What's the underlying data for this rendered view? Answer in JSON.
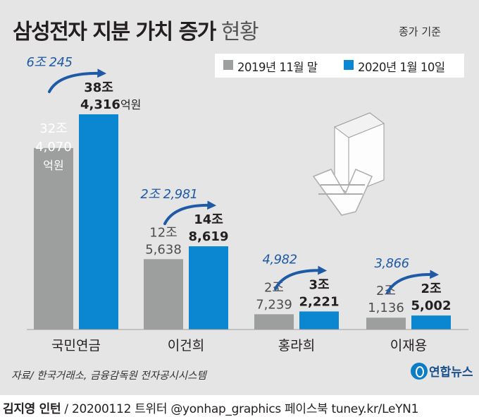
{
  "title": "삼성전자 지분 가치 증가",
  "title_suffix": "현황",
  "basis": "종가 기준",
  "unit": "억원",
  "colors": {
    "series_2019": "#9d9e9e",
    "series_2020": "#0b86d1",
    "increase": "#1f5aa6",
    "background": "#e5e5e5"
  },
  "chart_data": {
    "type": "bar",
    "title": "삼성전자 지분 가치 증가 현황",
    "unit": "억원",
    "categories": [
      "국민연금",
      "이건희",
      "홍라희",
      "이재용"
    ],
    "series": [
      {
        "name": "2019년 11월 말",
        "values": [
          324070,
          125638,
          27239,
          21136
        ]
      },
      {
        "name": "2020년 1월 10일",
        "values": [
          384316,
          148619,
          32221,
          25002
        ]
      }
    ],
    "increase": [
      60245,
      22981,
      4982,
      3866
    ],
    "labels": [
      {
        "v2019": [
          "32조",
          "4,070"
        ],
        "v2020": [
          "38조",
          "4,316"
        ],
        "inc": "6조 245"
      },
      {
        "v2019": [
          "12조",
          "5,638"
        ],
        "v2020": [
          "14조",
          "8,619"
        ],
        "inc": "2조 2,981"
      },
      {
        "v2019": [
          "2조",
          "7,239"
        ],
        "v2020": [
          "3조",
          "2,221"
        ],
        "inc": "4,982"
      },
      {
        "v2019": [
          "2조",
          "1,136"
        ],
        "v2020": [
          "2조",
          "5,002"
        ],
        "inc": "3,866"
      }
    ],
    "legend_position": "top-right",
    "grid": false,
    "ylim": [
      0,
      384316
    ]
  },
  "source": "자료/ 한국거래소, 금융감독원 전자공시시스템",
  "logo_text": "연합뉴스",
  "credit_author": "김지영 인턴",
  "credit_rest": " / 20200112 트위터 @yonhap_graphics  페이스북 tuney.kr/LeYN1"
}
